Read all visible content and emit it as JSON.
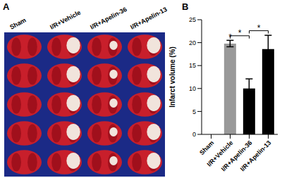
{
  "panel_a": {
    "label": "A",
    "columns": [
      "Sham",
      "I/R+Vehicle",
      "I/R+Apelin-36",
      "I/R+Apelin-13"
    ]
  },
  "panel_b": {
    "label": "B"
  },
  "chart_data": {
    "type": "bar",
    "categories": [
      "Sham",
      "I/R+Vehicle",
      "I/R+Apelin-36",
      "I/R+Apelin-13"
    ],
    "values": [
      0,
      19.8,
      10,
      18.6
    ],
    "errors": [
      null,
      0.7,
      2.1,
      3
    ],
    "colors": [
      "#000000",
      "#999999",
      "#000000",
      "#000000"
    ],
    "y_label": "Infarct volume (%)",
    "ylim": [
      0,
      25
    ],
    "yticks": [
      0,
      5,
      10,
      15,
      20,
      25
    ],
    "annotations": [
      {
        "text": "*",
        "category": "I/R+Vehicle"
      },
      {
        "text": "*",
        "between": [
          "I/R+Vehicle",
          "I/R+Apelin-36"
        ]
      },
      {
        "text": "*",
        "between": [
          "I/R+Apelin-36",
          "I/R+Apelin-13"
        ]
      }
    ]
  }
}
